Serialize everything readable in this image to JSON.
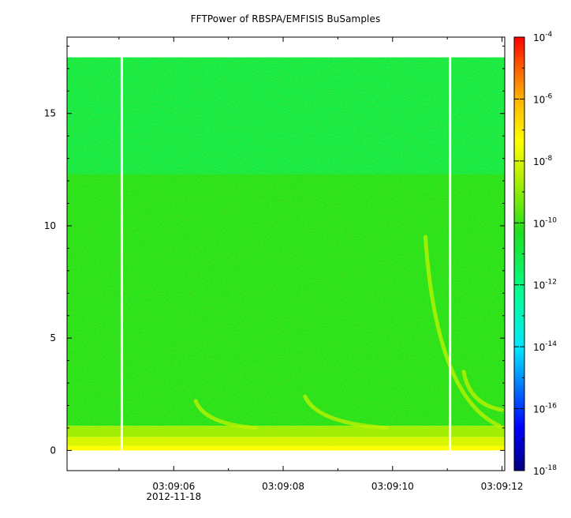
{
  "chart_data": {
    "type": "heatmap",
    "title": "FFTPower of RBSPA/EMFISIS  BuSamples",
    "xlabel": "",
    "ylabel": "",
    "x_ticks": [
      {
        "value": 6,
        "label": "03:09:06",
        "sublabel": "2012-11-18"
      },
      {
        "value": 8,
        "label": "03:09:08",
        "sublabel": ""
      },
      {
        "value": 10,
        "label": "03:09:10",
        "sublabel": ""
      },
      {
        "value": 12,
        "label": "03:09:12",
        "sublabel": ""
      }
    ],
    "xlim": [
      4.05,
      12.05
    ],
    "y_ticks": [
      0,
      5,
      10,
      15
    ],
    "ylim": [
      -0.9,
      18.4
    ],
    "z_scale": "log",
    "zlim": [
      1e-18,
      0.0001
    ],
    "colorbar": {
      "ticks": [
        {
          "base": "10",
          "exp": "-4",
          "value": 0.0001
        },
        {
          "base": "10",
          "exp": "-6",
          "value": 1e-06
        },
        {
          "base": "10",
          "exp": "-8",
          "value": 1e-08
        },
        {
          "base": "10",
          "exp": "-10",
          "value": 1e-10
        },
        {
          "base": "10",
          "exp": "-12",
          "value": 1e-12
        },
        {
          "base": "10",
          "exp": "-14",
          "value": 1e-14
        },
        {
          "base": "10",
          "exp": "-16",
          "value": 1e-16
        },
        {
          "base": "10",
          "exp": "-18",
          "value": 1e-18
        }
      ],
      "colormap": "rainbow"
    },
    "data_gaps_x": [
      5.05,
      11.05
    ],
    "data_extent": {
      "x": [
        4.05,
        12.05
      ],
      "y": [
        0,
        17.5
      ]
    },
    "bands": [
      {
        "y_range": [
          0,
          0.2
        ],
        "level_exp": -7.3
      },
      {
        "y_range": [
          0.2,
          0.6
        ],
        "level_exp": -8.0
      },
      {
        "y_range": [
          0.6,
          1.1
        ],
        "level_exp": -8.8
      },
      {
        "y_range": [
          1.1,
          12.3
        ],
        "level_exp": -10.2
      },
      {
        "y_range": [
          12.3,
          17.5
        ],
        "level_exp": -11.0
      }
    ],
    "chorus_features": [
      {
        "x_start": 6.4,
        "y_start": 2.2,
        "x_end": 7.5,
        "y_end": 1.0
      },
      {
        "x_start": 8.4,
        "y_start": 2.4,
        "x_end": 9.9,
        "y_end": 1.0
      },
      {
        "x_start": 10.6,
        "y_start": 9.5,
        "x_end": 11.95,
        "y_end": 1.1
      },
      {
        "x_start": 11.3,
        "y_start": 3.5,
        "x_end": 12.0,
        "y_end": 1.8
      }
    ]
  }
}
